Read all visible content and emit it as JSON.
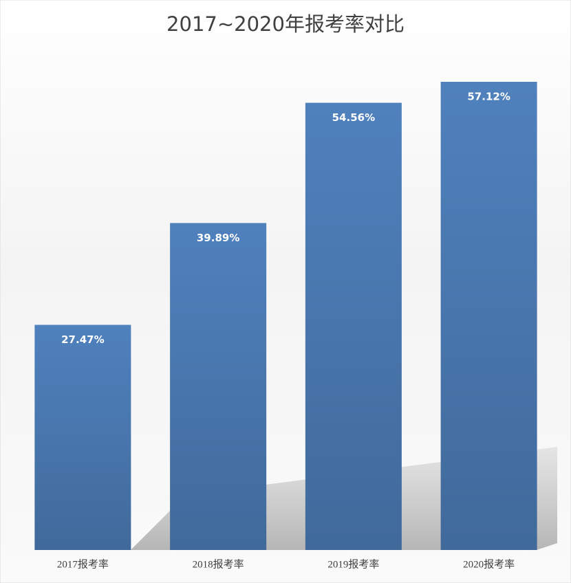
{
  "chart_data": {
    "type": "bar",
    "title": "2017~2020年报考率对比",
    "categories": [
      "2017报考率",
      "2018报考率",
      "2019报考率",
      "2020报考率"
    ],
    "values": [
      27.47,
      39.89,
      54.56,
      57.12
    ],
    "value_labels": [
      "27.47%",
      "39.89%",
      "54.56%",
      "57.12%"
    ],
    "color": "#4f81bd"
  }
}
